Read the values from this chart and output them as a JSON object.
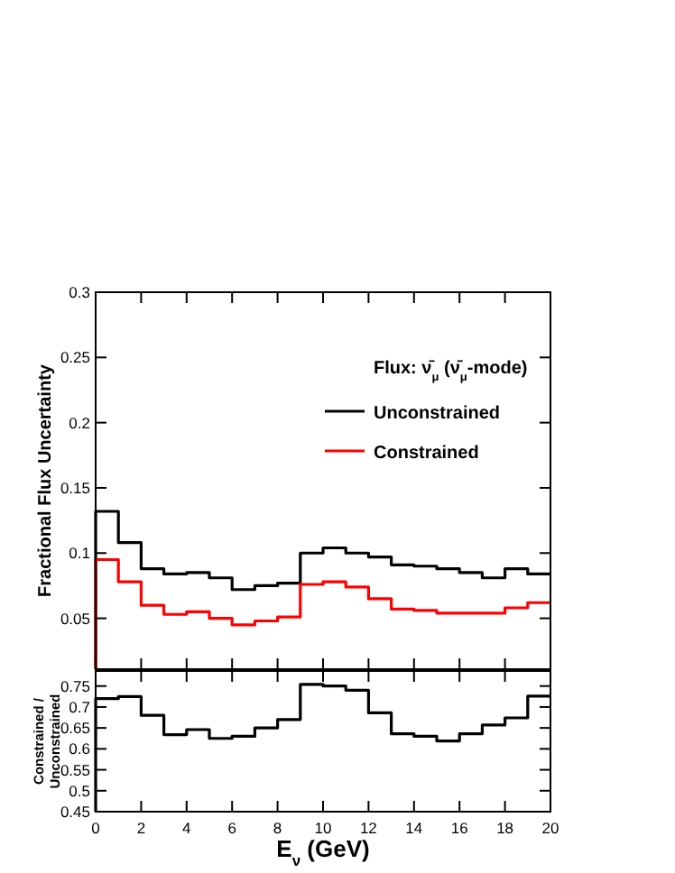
{
  "chart_data": [
    {
      "type": "histogram",
      "ylabel": "Fractional Flux Uncertainty",
      "legend_title": "Flux: ν̄$_{μ}$ (ν̄$_{μ}$-mode)",
      "legend": "top right",
      "tick_labels": "y",
      "bins": [
        0,
        1,
        2,
        3,
        4,
        5,
        6,
        7,
        8,
        9,
        10,
        11,
        12,
        13,
        14,
        15,
        16,
        17,
        18,
        19,
        20
      ],
      "xlim": [
        0,
        20
      ],
      "xticks": [
        {
          "value": 0,
          "label": null
        },
        {
          "value": 2,
          "label": null
        },
        {
          "value": 4,
          "label": null
        },
        {
          "value": 6,
          "label": null
        },
        {
          "value": 8,
          "label": null
        },
        {
          "value": 10,
          "label": null
        },
        {
          "value": 12,
          "label": null
        },
        {
          "value": 14,
          "label": null
        },
        {
          "value": 16,
          "label": null
        },
        {
          "value": 18,
          "label": null
        },
        {
          "value": 20,
          "label": null
        }
      ],
      "ylim": [
        0.011,
        0.3
      ],
      "yticks": [
        0.05,
        0.1,
        0.15,
        0.2,
        0.25,
        0.3
      ],
      "series": [
        {
          "name": "Unconstrained",
          "color": "#000000",
          "values": [
            0.132,
            0.108,
            0.088,
            0.084,
            0.085,
            0.081,
            0.072,
            0.075,
            0.077,
            0.1,
            0.104,
            0.1,
            0.097,
            0.091,
            0.09,
            0.088,
            0.085,
            0.081,
            0.088,
            0.084
          ]
        },
        {
          "name": "Constrained",
          "color": "#ff0000",
          "values": [
            0.095,
            0.078,
            0.06,
            0.053,
            0.055,
            0.05,
            0.045,
            0.048,
            0.051,
            0.076,
            0.078,
            0.074,
            0.065,
            0.057,
            0.056,
            0.054,
            0.054,
            0.054,
            0.058,
            0.062
          ]
        }
      ]
    },
    {
      "type": "histogram",
      "ylabel": "Constrained / Unconstrained",
      "xlabel": "E$_{ν}$ (GeV)",
      "bins": [
        0,
        1,
        2,
        3,
        4,
        5,
        6,
        7,
        8,
        9,
        10,
        11,
        12,
        13,
        14,
        15,
        16,
        17,
        18,
        19,
        20
      ],
      "xlim": [
        0,
        20
      ],
      "xticks": [
        0,
        2,
        4,
        6,
        8,
        10,
        12,
        14,
        16,
        18,
        20
      ],
      "ylim": [
        0.45,
        0.786
      ],
      "yticks": [
        0.45,
        0.5,
        0.55,
        0.6,
        0.65,
        0.7,
        0.75
      ],
      "series": [
        {
          "color": "#000000",
          "values": [
            0.72,
            0.725,
            0.68,
            0.634,
            0.646,
            0.625,
            0.63,
            0.65,
            0.67,
            0.754,
            0.75,
            0.74,
            0.686,
            0.636,
            0.63,
            0.619,
            0.636,
            0.657,
            0.674,
            0.726
          ]
        }
      ]
    }
  ]
}
